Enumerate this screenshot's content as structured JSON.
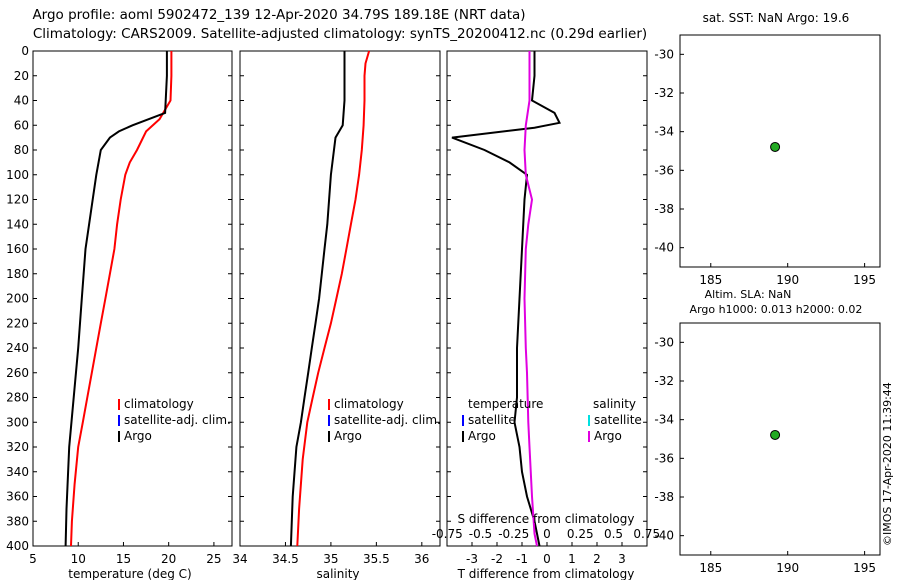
{
  "header": {
    "title_line1": "Argo profile: aoml 5902472_139 12-Apr-2020 34.79S 189.18E (NRT data)",
    "title_line2": "Climatology: CARS2009. Satellite-adjusted climatology: synTS_20200412.nc (0.29d earlier)"
  },
  "side": {
    "sst_label": "sat. SST: NaN Argo: 19.6",
    "sla_label": "Altim. SLA: NaN",
    "h_label": "Argo h1000: 0.013 h2000: 0.02",
    "credit": "©IMOS 17-Apr-2020 11:39:44"
  },
  "legend": {
    "climatology": "climatology",
    "satellite_adj": "satellite-adj. clim.",
    "argo": "Argo",
    "temperature_head": "temperature",
    "salinity_head": "salinity",
    "satellite": "satellite",
    "s_diff_title": "S difference from climatology",
    "s_diff_ticks": [
      "-0.75",
      "-0.5",
      "-0.25",
      "0",
      "0.25",
      "0.5",
      "0.75"
    ]
  },
  "colors": {
    "climatology": "#ff0000",
    "satellite_adj": "#0000ff",
    "argo": "#000000",
    "salinity_diff": "#e000e0",
    "satellite_cyan": "#00e0e0",
    "marker": "#22aa22"
  },
  "chart_data": [
    {
      "type": "line",
      "title": "",
      "xlabel": "temperature (deg C)",
      "ylabel": "",
      "xlim": [
        5,
        27
      ],
      "ylim": [
        400,
        0
      ],
      "xticks": [
        5,
        10,
        15,
        20,
        25
      ],
      "yticks": [
        0,
        20,
        40,
        60,
        80,
        100,
        120,
        140,
        160,
        180,
        200,
        220,
        240,
        260,
        280,
        300,
        320,
        340,
        360,
        380,
        400
      ],
      "series": [
        {
          "name": "climatology",
          "color": "#ff0000",
          "x": [
            20.3,
            20.3,
            20.2,
            19.0,
            17.5,
            16.5,
            15.7,
            15.2,
            14.7,
            14.3,
            14.0,
            13.5,
            13.0,
            12.5,
            12.0,
            11.5,
            11.0,
            10.5,
            10.0,
            9.6,
            9.3,
            9.2
          ],
          "y": [
            0,
            20,
            40,
            55,
            65,
            80,
            90,
            100,
            120,
            140,
            160,
            180,
            200,
            220,
            240,
            260,
            280,
            300,
            320,
            350,
            380,
            400
          ]
        },
        {
          "name": "Argo",
          "color": "#000000",
          "x": [
            19.8,
            19.8,
            19.6,
            16.0,
            14.5,
            13.5,
            12.5,
            12.0,
            11.6,
            11.2,
            10.8,
            10.4,
            10.0,
            9.5,
            9.0,
            8.7,
            8.6
          ],
          "y": [
            0,
            20,
            50,
            60,
            65,
            70,
            80,
            100,
            120,
            140,
            160,
            200,
            240,
            280,
            320,
            370,
            400
          ]
        }
      ]
    },
    {
      "type": "line",
      "title": "",
      "xlabel": "salinity",
      "ylabel": "",
      "xlim": [
        34,
        36.2
      ],
      "ylim": [
        400,
        0
      ],
      "xticks": [
        34,
        34.5,
        35,
        35.5,
        36
      ],
      "series": [
        {
          "name": "climatology",
          "color": "#ff0000",
          "x": [
            35.42,
            35.38,
            35.37,
            35.37,
            35.36,
            35.34,
            35.31,
            35.27,
            35.22,
            35.17,
            35.12,
            35.06,
            35.0,
            34.93,
            34.86,
            34.8,
            34.74,
            34.69,
            34.65,
            34.63
          ],
          "y": [
            0,
            10,
            20,
            40,
            60,
            80,
            100,
            120,
            140,
            160,
            180,
            200,
            220,
            240,
            260,
            280,
            300,
            330,
            370,
            400
          ]
        },
        {
          "name": "Argo",
          "color": "#000000",
          "x": [
            35.15,
            35.15,
            35.13,
            35.05,
            35.0,
            34.98,
            34.96,
            34.93,
            34.9,
            34.87,
            34.83,
            34.79,
            34.75,
            34.71,
            34.67,
            34.62,
            34.58,
            34.56
          ],
          "y": [
            0,
            40,
            60,
            70,
            100,
            120,
            140,
            160,
            180,
            200,
            220,
            240,
            260,
            280,
            300,
            320,
            360,
            400
          ]
        }
      ]
    },
    {
      "type": "line",
      "title": "",
      "xlabel": "T difference from climatology",
      "ylabel": "",
      "xlim": [
        -4,
        4
      ],
      "ylim": [
        400,
        0
      ],
      "xticks": [
        -3,
        -2,
        -1,
        0,
        1,
        2,
        3
      ],
      "series": [
        {
          "name": "temperature Argo",
          "color": "#000000",
          "x": [
            -0.5,
            -0.5,
            -0.6,
            0.3,
            0.5,
            -0.5,
            -3.8,
            -2.5,
            -1.5,
            -0.8,
            -0.9,
            -1.0,
            -1.1,
            -1.2,
            -1.2,
            -1.3,
            -1.1,
            -1.0,
            -0.8,
            -0.5,
            -0.3
          ],
          "y": [
            0,
            20,
            40,
            50,
            58,
            62,
            70,
            80,
            90,
            100,
            120,
            160,
            200,
            240,
            280,
            300,
            320,
            340,
            360,
            380,
            400
          ]
        },
        {
          "name": "salinity Argo",
          "color": "#e000e0",
          "x": [
            -0.7,
            -0.7,
            -0.85,
            -0.9,
            -0.85,
            -0.6,
            -0.75,
            -0.85,
            -0.9,
            -0.85,
            -0.8,
            -0.75,
            -0.7,
            -0.6,
            -0.5,
            -0.4
          ],
          "y": [
            0,
            40,
            60,
            80,
            100,
            120,
            140,
            160,
            200,
            240,
            260,
            300,
            320,
            360,
            390,
            400
          ]
        }
      ],
      "secondary_xaxis": {
        "label": "S difference from climatology",
        "ticks": [
          -0.75,
          -0.5,
          -0.25,
          0,
          0.25,
          0.5,
          0.75
        ]
      }
    },
    {
      "type": "scatter",
      "title": "sat. SST: NaN Argo: 19.6",
      "xlim": [
        183,
        196
      ],
      "ylim": [
        -41,
        -29
      ],
      "xticks": [
        185,
        190,
        195
      ],
      "yticks": [
        -30,
        -32,
        -34,
        -36,
        -38,
        -40
      ],
      "points": [
        {
          "x": 189.18,
          "y": -34.79
        }
      ]
    },
    {
      "type": "scatter",
      "title": "Altim. SLA: NaN",
      "xlim": [
        183,
        196
      ],
      "ylim": [
        -41,
        -29
      ],
      "xticks": [
        185,
        190,
        195
      ],
      "yticks": [
        -30,
        -32,
        -34,
        -36,
        -38,
        -40
      ],
      "points": [
        {
          "x": 189.18,
          "y": -34.79
        }
      ]
    }
  ]
}
